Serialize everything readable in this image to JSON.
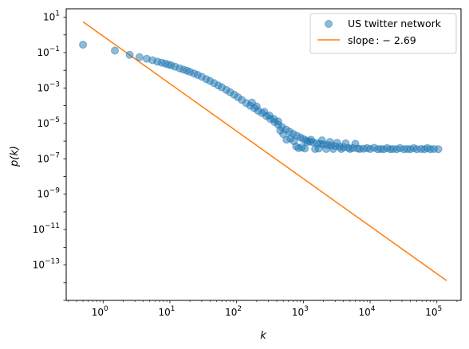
{
  "chart_data": {
    "type": "scatter",
    "xlabel": "k",
    "ylabel": "p(k)",
    "x_scale": "log",
    "y_scale": "log",
    "xlim": [
      0.28,
      230000
    ],
    "ylim": [
      1e-15,
      30
    ],
    "x_ticks": [
      {
        "base": "10",
        "exp": "0",
        "value": 1
      },
      {
        "base": "10",
        "exp": "1",
        "value": 10
      },
      {
        "base": "10",
        "exp": "2",
        "value": 100
      },
      {
        "base": "10",
        "exp": "3",
        "value": 1000
      },
      {
        "base": "10",
        "exp": "4",
        "value": 10000
      },
      {
        "base": "10",
        "exp": "5",
        "value": 100000
      }
    ],
    "y_ticks": [
      {
        "base": "10",
        "exp": "1",
        "value": 10
      },
      {
        "base": "10",
        "exp": "−1",
        "value": 0.1
      },
      {
        "base": "10",
        "exp": "−3",
        "value": 0.001
      },
      {
        "base": "10",
        "exp": "−5",
        "value": 1e-05
      },
      {
        "base": "10",
        "exp": "−7",
        "value": 1e-07
      },
      {
        "base": "10",
        "exp": "−9",
        "value": 1e-09
      },
      {
        "base": "10",
        "exp": "−11",
        "value": 1e-11
      },
      {
        "base": "10",
        "exp": "−13",
        "value": 1e-13
      }
    ],
    "legend_position": "top-right",
    "grid": false,
    "series": [
      {
        "name": "US twitter network",
        "kind": "scatter",
        "color": "#1f77b4",
        "points": [
          [
            0.5,
            0.28
          ],
          [
            1.5,
            0.13
          ],
          [
            2.5,
            0.075
          ],
          [
            3.5,
            0.055
          ],
          [
            4.5,
            0.045
          ],
          [
            5.5,
            0.037
          ],
          [
            6.5,
            0.031
          ],
          [
            7.5,
            0.027
          ],
          [
            8.5,
            0.024
          ],
          [
            9.5,
            0.021
          ],
          [
            10.5,
            0.019
          ],
          [
            12,
            0.016
          ],
          [
            14,
            0.013
          ],
          [
            16,
            0.011
          ],
          [
            18,
            0.0095
          ],
          [
            20,
            0.0082
          ],
          [
            23,
            0.0066
          ],
          [
            26,
            0.0055
          ],
          [
            30,
            0.0043
          ],
          [
            35,
            0.0032
          ],
          [
            40,
            0.0025
          ],
          [
            46,
            0.0019
          ],
          [
            53,
            0.0014
          ],
          [
            60,
            0.0011
          ],
          [
            70,
            0.00078
          ],
          [
            80,
            0.00058
          ],
          [
            92,
            0.00042
          ],
          [
            105,
            0.0003
          ],
          [
            120,
            0.00021
          ],
          [
            140,
            0.00014
          ],
          [
            160,
            0.0001
          ],
          [
            185,
            7.2e-05
          ],
          [
            210,
            5.2e-05
          ],
          [
            240,
            3.8e-05
          ],
          [
            280,
            2.6e-05
          ],
          [
            320,
            1.8e-05
          ],
          [
            370,
            1.2e-05
          ],
          [
            420,
            8.5e-06
          ],
          [
            480,
            6.2e-06
          ],
          [
            550,
            4.5e-06
          ],
          [
            620,
            3.4e-06
          ],
          [
            700,
            2.6e-06
          ],
          [
            800,
            2e-06
          ],
          [
            900,
            1.6e-06
          ],
          [
            1000,
            1.3e-06
          ],
          [
            1100,
            1.1e-06
          ],
          [
            1250,
            9.5e-07
          ],
          [
            1400,
            8.5e-07
          ],
          [
            1600,
            7.5e-07
          ],
          [
            1800,
            7e-07
          ],
          [
            2000,
            6.5e-07
          ],
          [
            2300,
            6e-07
          ],
          [
            2600,
            5.6e-07
          ],
          [
            3000,
            5.2e-07
          ],
          [
            3500,
            4.8e-07
          ],
          [
            4000,
            4.5e-07
          ],
          [
            4700,
            4.2e-07
          ],
          [
            5500,
            4e-07
          ],
          [
            6500,
            3.8e-07
          ],
          [
            8000,
            3.7e-07
          ],
          [
            10000,
            3.6e-07
          ],
          [
            13000,
            3.5e-07
          ],
          [
            16000,
            3.5e-07
          ],
          [
            20000,
            3.5e-07
          ],
          [
            25000,
            3.5e-07
          ],
          [
            32000,
            3.5e-07
          ],
          [
            40000,
            3.5e-07
          ],
          [
            50000,
            3.5e-07
          ],
          [
            65000,
            3.5e-07
          ],
          [
            80000,
            3.5e-07
          ],
          [
            105000,
            3.5e-07
          ],
          [
            170,
            0.00015
          ],
          [
            200,
            9e-05
          ],
          [
            260,
            4.5e-05
          ],
          [
            310,
            2.8e-05
          ],
          [
            360,
            1.8e-05
          ],
          [
            420,
            1.3e-05
          ],
          [
            450,
            4e-06
          ],
          [
            500,
            2.5e-06
          ],
          [
            560,
            1.2e-06
          ],
          [
            640,
            1.4e-06
          ],
          [
            720,
            1e-06
          ],
          [
            780,
            5e-07
          ],
          [
            850,
            4e-07
          ],
          [
            950,
            4.5e-07
          ],
          [
            1050,
            3.8e-07
          ],
          [
            1150,
            9e-07
          ],
          [
            1300,
            1.2e-06
          ],
          [
            1500,
            3.6e-07
          ],
          [
            1700,
            3.8e-07
          ],
          [
            1900,
            1.1e-06
          ],
          [
            2200,
            3.6e-07
          ],
          [
            2500,
            9e-07
          ],
          [
            2800,
            3.6e-07
          ],
          [
            3200,
            8e-07
          ],
          [
            3700,
            3.6e-07
          ],
          [
            4300,
            7.5e-07
          ],
          [
            5000,
            3.6e-07
          ],
          [
            6000,
            7e-07
          ],
          [
            7000,
            3.6e-07
          ],
          [
            9000,
            4e-07
          ],
          [
            11500,
            4.2e-07
          ],
          [
            14500,
            3.6e-07
          ],
          [
            18000,
            4e-07
          ],
          [
            22000,
            3.6e-07
          ],
          [
            28000,
            4e-07
          ],
          [
            36000,
            3.6e-07
          ],
          [
            45000,
            4e-07
          ],
          [
            58000,
            3.6e-07
          ],
          [
            72000,
            4e-07
          ],
          [
            90000,
            3.6e-07
          ]
        ]
      },
      {
        "name": "slope : − 2.69",
        "name_prefix": "slope",
        "name_value": ": − 2.69",
        "kind": "line",
        "color": "#ff7f0e",
        "points": [
          [
            0.5,
            5.5
          ],
          [
            140000,
            1.3e-14
          ]
        ]
      }
    ]
  }
}
